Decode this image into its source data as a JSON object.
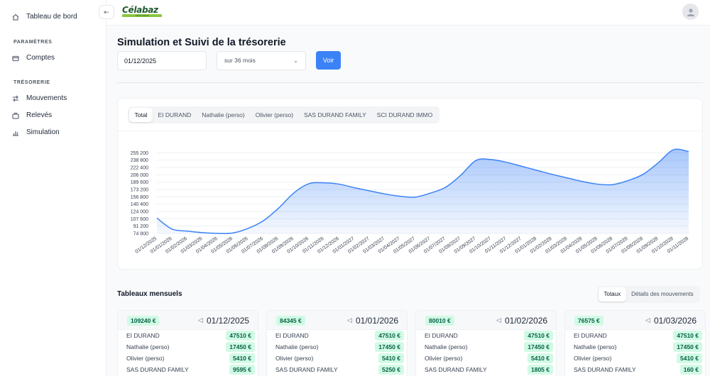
{
  "sidebar": {
    "dashboard_label": "Tableau de bord",
    "section_parametres": "PARAMÈTRES",
    "comptes_label": "Comptes",
    "section_tresorerie": "TRÉSORERIE",
    "mouvements_label": "Mouvements",
    "releves_label": "Relevés",
    "simulation_label": "Simulation"
  },
  "topbar": {
    "collapse_icon": "sidebar-collapse-icon",
    "logo_text": "Célabaz",
    "logo_sub": "TRÉSORERIE",
    "avatar_icon": "user-icon"
  },
  "page": {
    "title": "Simulation et Suivi de la trésorerie",
    "date_value": "01/12/2025",
    "period_selected": "sur 36 mois",
    "submit_label": "Voir"
  },
  "chart_tabs": [
    "Total",
    "EI DURAND",
    "Nathalie (perso)",
    "Olivier (perso)",
    "SAS DURAND FAMILY",
    "SCI DURAND IMMO"
  ],
  "chart_data": {
    "type": "area",
    "x": [
      "01/12/2025",
      "01/01/2026",
      "01/02/2026",
      "01/03/2026",
      "01/04/2026",
      "01/05/2026",
      "01/06/2026",
      "01/07/2026",
      "01/08/2026",
      "01/09/2026",
      "01/10/2026",
      "01/11/2026",
      "01/12/2026",
      "01/01/2027",
      "01/02/2027",
      "01/03/2027",
      "01/04/2027",
      "01/05/2027",
      "01/06/2027",
      "01/07/2027",
      "01/08/2027",
      "01/09/2027",
      "01/10/2027",
      "01/11/2027",
      "01/12/2027",
      "01/01/2028",
      "01/02/2028",
      "01/03/2028",
      "01/04/2028",
      "01/05/2028",
      "01/06/2028",
      "01/07/2028",
      "01/08/2028",
      "01/09/2028",
      "01/10/2028",
      "01/11/2028"
    ],
    "series": [
      {
        "values": [
          109240,
          84345,
          80010,
          76575,
          74800,
          75800,
          86000,
          103000,
          131000,
          165000,
          186000,
          188000,
          185000,
          177000,
          170000,
          163000,
          158000,
          156000,
          165000,
          178000,
          205000,
          238000,
          240000,
          234000,
          225000,
          216000,
          207000,
          199000,
          191000,
          185000,
          184000,
          193000,
          207000,
          233000,
          262000,
          258000
        ]
      }
    ],
    "yticks": [
      74800,
      91200,
      107600,
      124000,
      140400,
      156800,
      173200,
      189600,
      206000,
      222400,
      238800,
      255200
    ],
    "ylim": [
      74800,
      271600
    ],
    "grid": true,
    "accent": "#3b82f6"
  },
  "tables": {
    "title": "Tableaux mensuels",
    "tab_totaux": "Totaux",
    "tab_details": "Détails des mouvements",
    "months": [
      {
        "total": "109240 €",
        "date": "01/12/2025",
        "rows": [
          {
            "label": "EI DURAND",
            "value": "47510 €"
          },
          {
            "label": "Nathalie (perso)",
            "value": "17450 €"
          },
          {
            "label": "Olivier (perso)",
            "value": "5410 €"
          },
          {
            "label": "SAS DURAND FAMILY",
            "value": "9595 €"
          }
        ]
      },
      {
        "total": "84345 €",
        "date": "01/01/2026",
        "rows": [
          {
            "label": "EI DURAND",
            "value": "47510 €"
          },
          {
            "label": "Nathalie (perso)",
            "value": "17450 €"
          },
          {
            "label": "Olivier (perso)",
            "value": "5410 €"
          },
          {
            "label": "SAS DURAND FAMILY",
            "value": "5250 €"
          }
        ]
      },
      {
        "total": "80010 €",
        "date": "01/02/2026",
        "rows": [
          {
            "label": "EI DURAND",
            "value": "47510 €"
          },
          {
            "label": "Nathalie (perso)",
            "value": "17450 €"
          },
          {
            "label": "Olivier (perso)",
            "value": "5410 €"
          },
          {
            "label": "SAS DURAND FAMILY",
            "value": "1805 €"
          }
        ]
      },
      {
        "total": "76575 €",
        "date": "01/03/2026",
        "rows": [
          {
            "label": "EI DURAND",
            "value": "47510 €"
          },
          {
            "label": "Nathalie (perso)",
            "value": "17450 €"
          },
          {
            "label": "Olivier (perso)",
            "value": "5410 €"
          },
          {
            "label": "SAS DURAND FAMILY",
            "value": "160 €"
          }
        ]
      }
    ]
  }
}
